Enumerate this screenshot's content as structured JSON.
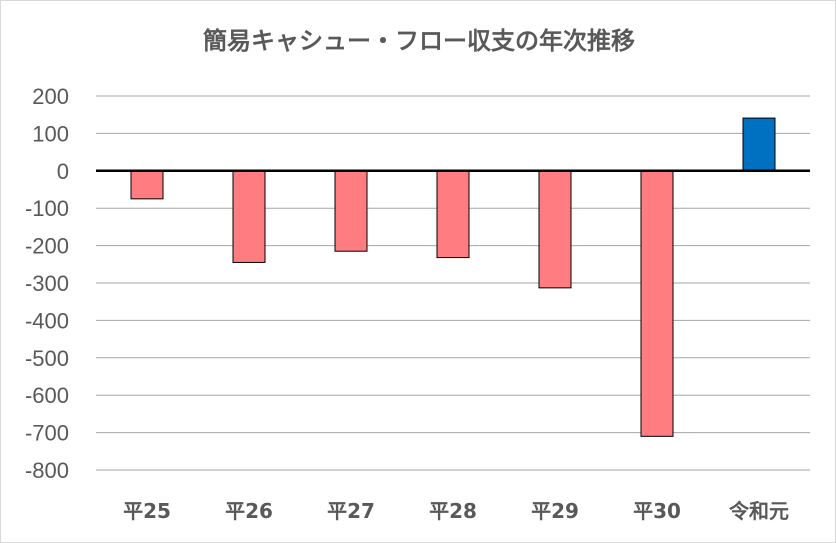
{
  "chart_data": {
    "type": "bar",
    "title": "簡易キャシュー・フロー収支の年次推移",
    "categories": [
      "平25",
      "平26",
      "平27",
      "平28",
      "平29",
      "平30",
      "令和元"
    ],
    "values": [
      -75,
      -245,
      -215,
      -232,
      -313,
      -710,
      141
    ],
    "ylim": [
      -800,
      200
    ],
    "yticks": [
      200,
      100,
      0,
      -100,
      -200,
      -300,
      -400,
      -500,
      -600,
      -700,
      -800
    ],
    "grid": true,
    "legend": "none",
    "colors": {
      "negative": "#ff7c80",
      "positive": "#0070c0",
      "bar_border": "#000000",
      "grid": "#a6a6a6",
      "zero_line": "#000000",
      "text": "#595959"
    }
  }
}
